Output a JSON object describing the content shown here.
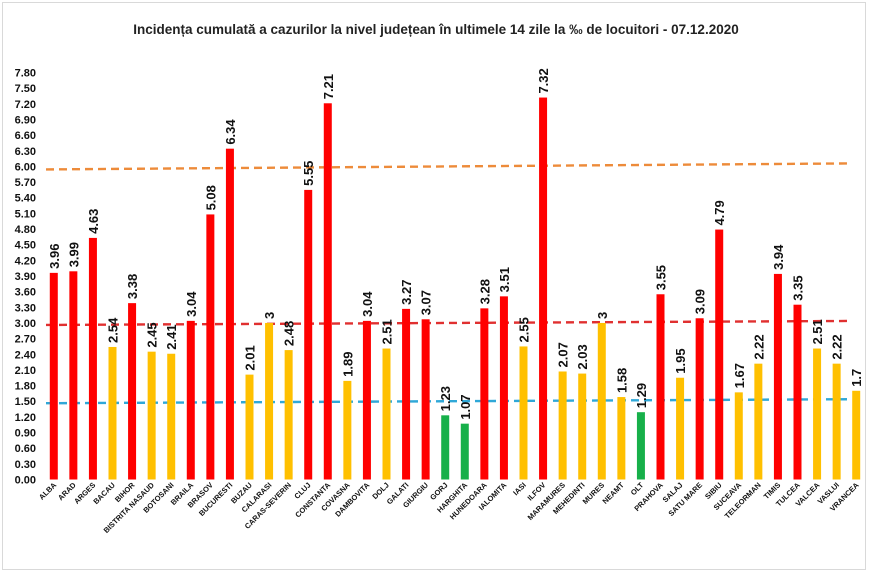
{
  "chart_data": {
    "type": "bar",
    "title": "Incidența cumulată a cazurilor la nivel județean în ultimele 14 zile la ‰ de locuitori - 07.12.2020",
    "xlabel": "",
    "ylabel": "",
    "ylim": [
      0,
      7.8
    ],
    "yticks": [
      "0.00",
      "0.30",
      "0.60",
      "0.90",
      "1.20",
      "1.50",
      "1.80",
      "2.10",
      "2.40",
      "2.70",
      "3.00",
      "3.30",
      "3.60",
      "3.90",
      "4.20",
      "4.50",
      "4.80",
      "5.10",
      "5.40",
      "5.70",
      "6.00",
      "6.30",
      "6.60",
      "6.90",
      "7.20",
      "7.50",
      "7.80"
    ],
    "grid": false,
    "legend": "none",
    "categories": [
      "ALBA",
      "ARAD",
      "ARGES",
      "BACAU",
      "BIHOR",
      "BISTRITA NASAUD",
      "BOTOSANI",
      "BRAILA",
      "BRASOV",
      "BUCURESTI",
      "BUZAU",
      "CALARASI",
      "CARAS-SEVERIN",
      "CLUJ",
      "CONSTANTA",
      "COVASNA",
      "DAMBOVITA",
      "DOLJ",
      "GALATI",
      "GIURGIU",
      "GORJ",
      "HARGHITA",
      "HUNEDOARA",
      "IALOMITA",
      "IASI",
      "ILFOV",
      "MARAMURES",
      "MEHEDINTI",
      "MURES",
      "NEAMT",
      "OLT",
      "PRAHOVA",
      "SALAJ",
      "SATU MARE",
      "SIBIU",
      "SUCEAVA",
      "TELEORMAN",
      "TIMIS",
      "TULCEA",
      "VALCEA",
      "VASLUI",
      "VRANCEA"
    ],
    "values": [
      3.96,
      3.99,
      4.63,
      2.54,
      3.38,
      2.45,
      2.41,
      3.04,
      5.08,
      6.34,
      2.01,
      3,
      2.48,
      5.55,
      7.21,
      1.89,
      3.04,
      2.51,
      3.27,
      3.07,
      1.23,
      1.07,
      3.28,
      3.51,
      2.55,
      7.32,
      2.07,
      2.03,
      3,
      1.58,
      1.29,
      3.55,
      1.95,
      3.09,
      4.79,
      1.67,
      2.22,
      3.94,
      3.35,
      2.51,
      2.22,
      1.7
    ],
    "labels": [
      "3.96",
      "3.99",
      "4.63",
      "2.54",
      "3.38",
      "2.45",
      "2.41",
      "3.04",
      "5.08",
      "6.34",
      "2.01",
      "3",
      "2.48",
      "5.55",
      "7.21",
      "1.89",
      "3.04",
      "2.51",
      "3.27",
      "3.07",
      "1.23",
      "1.07",
      "3.28",
      "3.51",
      "2.55",
      "7.32",
      "2.07",
      "2.03",
      "3",
      "1.58",
      "1.29",
      "3.55",
      "1.95",
      "3.09",
      "4.79",
      "1.67",
      "2.22",
      "3.94",
      "3.35",
      "2.51",
      "2.22",
      "1.7"
    ],
    "thresholds": [
      {
        "value": 6.0,
        "style": "dashed",
        "color": "#ed8b3a"
      },
      {
        "value": 3.0,
        "style": "dashed",
        "color": "#e03030"
      },
      {
        "value": 1.5,
        "style": "dashed",
        "color": "#2fa8d8"
      }
    ],
    "colors": {
      "high": "#ff0000",
      "medium": "#ffc000",
      "low": "#17b04a"
    },
    "color_rule": "value > 3 red, 1.5 < value <= 3 yellow, value <= 1.5 green"
  }
}
